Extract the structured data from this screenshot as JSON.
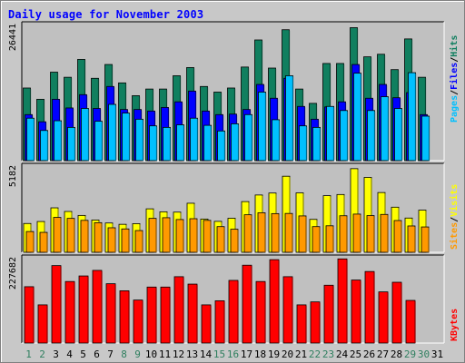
{
  "title": "Daily usage for November 2003",
  "colors": {
    "hits": "#107f5f",
    "files": "#0000ff",
    "pages": "#00c0ff",
    "visits": "#ffff00",
    "sites": "#ff9900",
    "kbytes": "#ff0000",
    "panel": "#c0c0c0",
    "weekend_label": "#2f7f5f",
    "weekday_label": "#0000ff"
  },
  "axis": {
    "top_max_label": "26441",
    "mid_max_label": "5182",
    "bottom_max_label": "227682"
  },
  "legend": {
    "pages": "Pages",
    "files": "Files",
    "hits": "Hits",
    "sites": "Sites",
    "visits": "Visits",
    "kbytes": "KBytes",
    "sep": "/"
  },
  "chart_data": [
    {
      "type": "bar",
      "categories": [
        "1",
        "2",
        "3",
        "4",
        "5",
        "6",
        "7",
        "8",
        "9",
        "10",
        "11",
        "12",
        "13",
        "14",
        "15",
        "16",
        "17",
        "18",
        "19",
        "20",
        "21",
        "22",
        "23",
        "24",
        "25",
        "26",
        "27",
        "28",
        "29",
        "30",
        "31"
      ],
      "ylim": [
        0,
        26441
      ],
      "series": [
        {
          "name": "Hits",
          "values": [
            14200,
            12000,
            17300,
            16300,
            19800,
            16100,
            18800,
            15200,
            12700,
            14000,
            14000,
            16600,
            18200,
            14500,
            13400,
            14200,
            18300,
            23600,
            18100,
            25600,
            14000,
            11200,
            19000,
            19000,
            26000,
            20300,
            20800,
            17800,
            23800,
            16300,
            0
          ]
        },
        {
          "name": "Files",
          "values": [
            9000,
            7600,
            12000,
            10300,
            12900,
            10200,
            14500,
            10000,
            10000,
            9700,
            10400,
            11500,
            13600,
            9700,
            9000,
            9100,
            10000,
            14900,
            12200,
            16100,
            10600,
            8100,
            10500,
            11500,
            18800,
            12200,
            14900,
            12300,
            13300,
            9000,
            0
          ]
        },
        {
          "name": "Pages",
          "values": [
            8300,
            5900,
            7800,
            6500,
            10200,
            7700,
            11000,
            9300,
            8100,
            6800,
            6500,
            7000,
            8300,
            6900,
            5800,
            7200,
            9000,
            13400,
            8000,
            16600,
            6800,
            6500,
            10600,
            9800,
            17100,
            9800,
            12500,
            10200,
            17200,
            8700,
            0
          ]
        }
      ]
    },
    {
      "type": "bar",
      "categories": [
        "1",
        "2",
        "3",
        "4",
        "5",
        "6",
        "7",
        "8",
        "9",
        "10",
        "11",
        "12",
        "13",
        "14",
        "15",
        "16",
        "17",
        "18",
        "19",
        "20",
        "21",
        "22",
        "23",
        "24",
        "25",
        "26",
        "27",
        "28",
        "29",
        "30",
        "31"
      ],
      "ylim": [
        0,
        5182
      ],
      "series": [
        {
          "name": "Visits",
          "values": [
            1750,
            1870,
            2700,
            2480,
            2240,
            1960,
            1780,
            1700,
            1740,
            2640,
            2460,
            2440,
            2980,
            2020,
            1880,
            2070,
            3080,
            3480,
            3600,
            4620,
            3610,
            2000,
            3440,
            3510,
            5080,
            4550,
            3630,
            2740,
            2080,
            2560,
            0
          ]
        },
        {
          "name": "Sites",
          "values": [
            1260,
            1210,
            2120,
            2060,
            1940,
            1800,
            1490,
            1420,
            1320,
            2060,
            2100,
            1990,
            2040,
            1940,
            1560,
            1400,
            2280,
            2400,
            2350,
            2360,
            2210,
            1560,
            1610,
            2220,
            2320,
            2230,
            2300,
            1930,
            1600,
            1540,
            0
          ]
        }
      ]
    },
    {
      "type": "bar",
      "categories": [
        "1",
        "2",
        "3",
        "4",
        "5",
        "6",
        "7",
        "8",
        "9",
        "10",
        "11",
        "12",
        "13",
        "14",
        "15",
        "16",
        "17",
        "18",
        "19",
        "20",
        "21",
        "22",
        "23",
        "24",
        "25",
        "26",
        "27",
        "28",
        "29",
        "30",
        "31"
      ],
      "ylim": [
        0,
        227682
      ],
      "series": [
        {
          "name": "KBytes",
          "values": [
            152000,
            103000,
            209000,
            166000,
            181000,
            196000,
            160000,
            141000,
            116000,
            151000,
            151000,
            179000,
            159000,
            103000,
            114000,
            169000,
            210000,
            166000,
            225000,
            179000,
            103000,
            111000,
            156000,
            227000,
            170000,
            193000,
            138000,
            164000,
            115000,
            0,
            0
          ]
        }
      ]
    }
  ],
  "x_labels": [
    "1",
    "2",
    "3",
    "4",
    "5",
    "6",
    "7",
    "8",
    "9",
    "10",
    "11",
    "12",
    "13",
    "14",
    "15",
    "16",
    "17",
    "18",
    "19",
    "20",
    "21",
    "22",
    "23",
    "24",
    "25",
    "26",
    "27",
    "28",
    "29",
    "30",
    "31"
  ],
  "weekend_days": [
    1,
    2,
    8,
    9,
    15,
    16,
    22,
    23,
    29,
    30
  ]
}
